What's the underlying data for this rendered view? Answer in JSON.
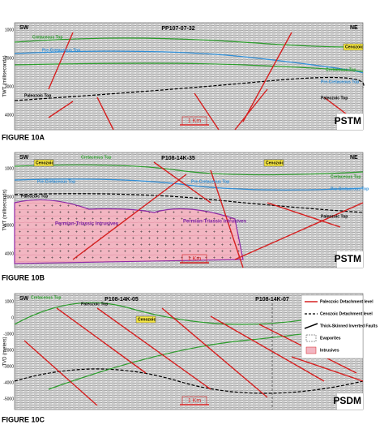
{
  "panels": [
    {
      "caption": "FIGURE 10A",
      "line_name": "PP107-07-32",
      "left": "SW",
      "right": "NE",
      "axis_label": "TWT (milliseconds)",
      "ticks": [
        1000,
        2000,
        3000,
        4000
      ],
      "scale": "1 Km",
      "processing": "PSTM",
      "labels": [
        "Cretaceous Top",
        "Pre-Cretaceous Top",
        "Cenozoic",
        "Cretaceous Top",
        "Pre-Cretaceous Top",
        "Paleozoic Top",
        "Paleozoic Top"
      ]
    },
    {
      "caption": "FIGURE 10B",
      "line_name": "P108-14K-35",
      "left": "SW",
      "right": "NE",
      "axis_label": "TWT (milliseconds)",
      "ticks": [
        1000,
        2000,
        3000,
        4000
      ],
      "scale": "1 Km",
      "processing": "PSTM",
      "labels": [
        "Cretaceous Top",
        "Cenozoic",
        "Cenozoic",
        "Pre-Cretaceous Top",
        "Pre-Cretaceous Top",
        "Cretaceous Top",
        "Pre-Cretaceous Top",
        "Paleozoic Top",
        "Paleozoic Top",
        "Permian-Triassic Intrusives",
        "Permian-Triassic Intrusives"
      ]
    },
    {
      "caption": "FIGURE 10C",
      "line_name": "P108-14K-05",
      "line_name_2": "P108-14K-07",
      "left": "SW",
      "right": "NE",
      "axis_label": "TVD (meters)",
      "ticks": [
        1000,
        0,
        -1000,
        -2000,
        -3000,
        -4000,
        -5000
      ],
      "scale": "1 Km",
      "processing": "PSDM",
      "labels": [
        "Cretaceous Top",
        "Paleozoic Top",
        "Cenozoic",
        "Cretaceous Top",
        "Paleozoic Top"
      ]
    }
  ],
  "legend": [
    "Paleozoic Detachment level",
    "Cenozoic Detachment level",
    "Thick-Skinned Inverted Faults",
    "Evaporites",
    "Intrusives"
  ]
}
